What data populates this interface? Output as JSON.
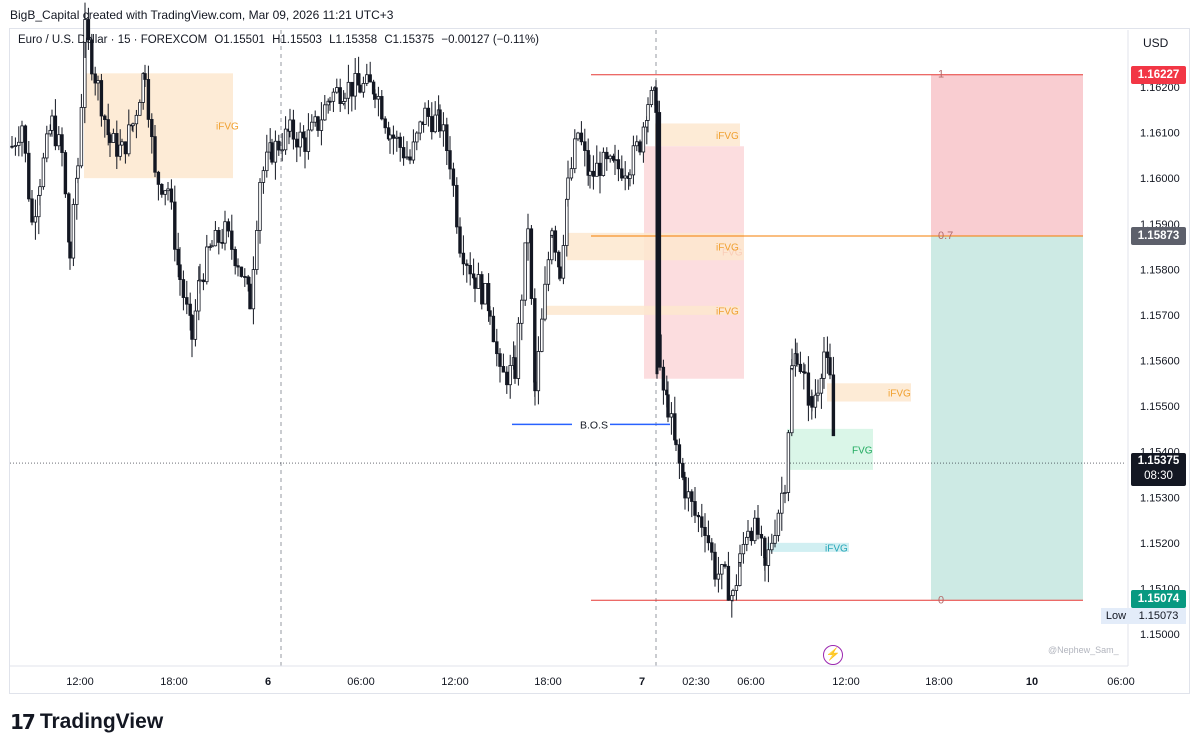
{
  "header": {
    "credit": "BigB_Capital created with TradingView.com, Mar 09, 2026 11:21 UTC+3"
  },
  "legend": {
    "symbol": "Euro / U.S. Dollar · 15 · FOREXCOM",
    "open": "O1.15501",
    "high": "H1.15503",
    "low": "L1.15358",
    "close": "C1.15375",
    "change": "−0.00127 (−0.11%)"
  },
  "currency": "USD",
  "watermark": "@Nephew_Sam_",
  "footer": {
    "brand": "TradingView",
    "mark": "17"
  },
  "colors": {
    "bullish_outline": "#131722",
    "bearish_fill": "#131722",
    "ifvg_zone": "#fde7cf",
    "fvg_bear_zone": "#fcd7d9",
    "fvg_bull_zone": "#d4f4e4",
    "ifvg_teal_zone": "#c9ecf0",
    "stop_zone": "#f9cdd1",
    "target_zone": "#cdeae4",
    "fib_red": "#e53935",
    "fib_orange": "#f57c00",
    "bos_blue": "#2962ff",
    "tag_red": "#f23645",
    "tag_grey": "#5d606b",
    "tag_black": "#131722",
    "tag_green": "#089981"
  },
  "chart_data": {
    "type": "candlestick",
    "symbol": "EURUSD",
    "timeframe": "15",
    "ylim": [
      1.1495,
      1.1645
    ],
    "y_ticks": [
      1.15,
      1.151,
      1.152,
      1.153,
      1.154,
      1.155,
      1.156,
      1.157,
      1.158,
      1.159,
      1.16,
      1.161,
      1.162
    ],
    "y_tick_labels": [
      "1.15000",
      "1.15100",
      "1.15200",
      "1.15300",
      "1.15400",
      "1.15500",
      "1.15600",
      "1.15700",
      "1.15800",
      "1.15900",
      "1.16000",
      "1.16100",
      "1.16200"
    ],
    "x_tick_labels": [
      "12:00",
      "18:00",
      "6",
      "06:00",
      "12:00",
      "18:00",
      "7",
      "02:30",
      "06:00",
      "12:00",
      "18:00",
      "10",
      "06:00"
    ],
    "bold_x_labels": [
      "6",
      "7",
      "10"
    ],
    "current_price": "1.15375",
    "countdown": "08:30",
    "low_label": "Low",
    "low_value": "1.15073",
    "fib_levels": [
      {
        "label": "1",
        "price": 1.16227,
        "tag": "1.16227"
      },
      {
        "label": "0.7",
        "price": 1.15873,
        "tag": "1.15873"
      },
      {
        "label": "0",
        "price": 1.15074,
        "tag": "1.15074"
      }
    ],
    "zones": [
      {
        "label": "iFVG",
        "top": 1.1623,
        "bottom": 1.16,
        "kind": "ifvg"
      },
      {
        "label": "iFVG",
        "top": 1.1612,
        "bottom": 1.1607,
        "kind": "ifvg"
      },
      {
        "label": "FVG",
        "top": 1.1607,
        "bottom": 1.1556,
        "kind": "fvg_bear"
      },
      {
        "label": "iFVG",
        "top": 1.1588,
        "bottom": 1.1582,
        "kind": "ifvg"
      },
      {
        "label": "iFVG",
        "top": 1.1572,
        "bottom": 1.157,
        "kind": "ifvg"
      },
      {
        "label": "iFVG",
        "top": 1.1555,
        "bottom": 1.1551,
        "kind": "ifvg"
      },
      {
        "label": "FVG",
        "top": 1.1545,
        "bottom": 1.1536,
        "kind": "fvg_bull"
      },
      {
        "label": "iFVG",
        "top": 1.152,
        "bottom": 1.1518,
        "kind": "ifvg_teal"
      }
    ],
    "annotations": [
      {
        "label": "B.O.S",
        "price": 1.1546
      }
    ],
    "position": {
      "entry": 1.15873,
      "stop": 1.16227,
      "target": 1.15074
    }
  }
}
